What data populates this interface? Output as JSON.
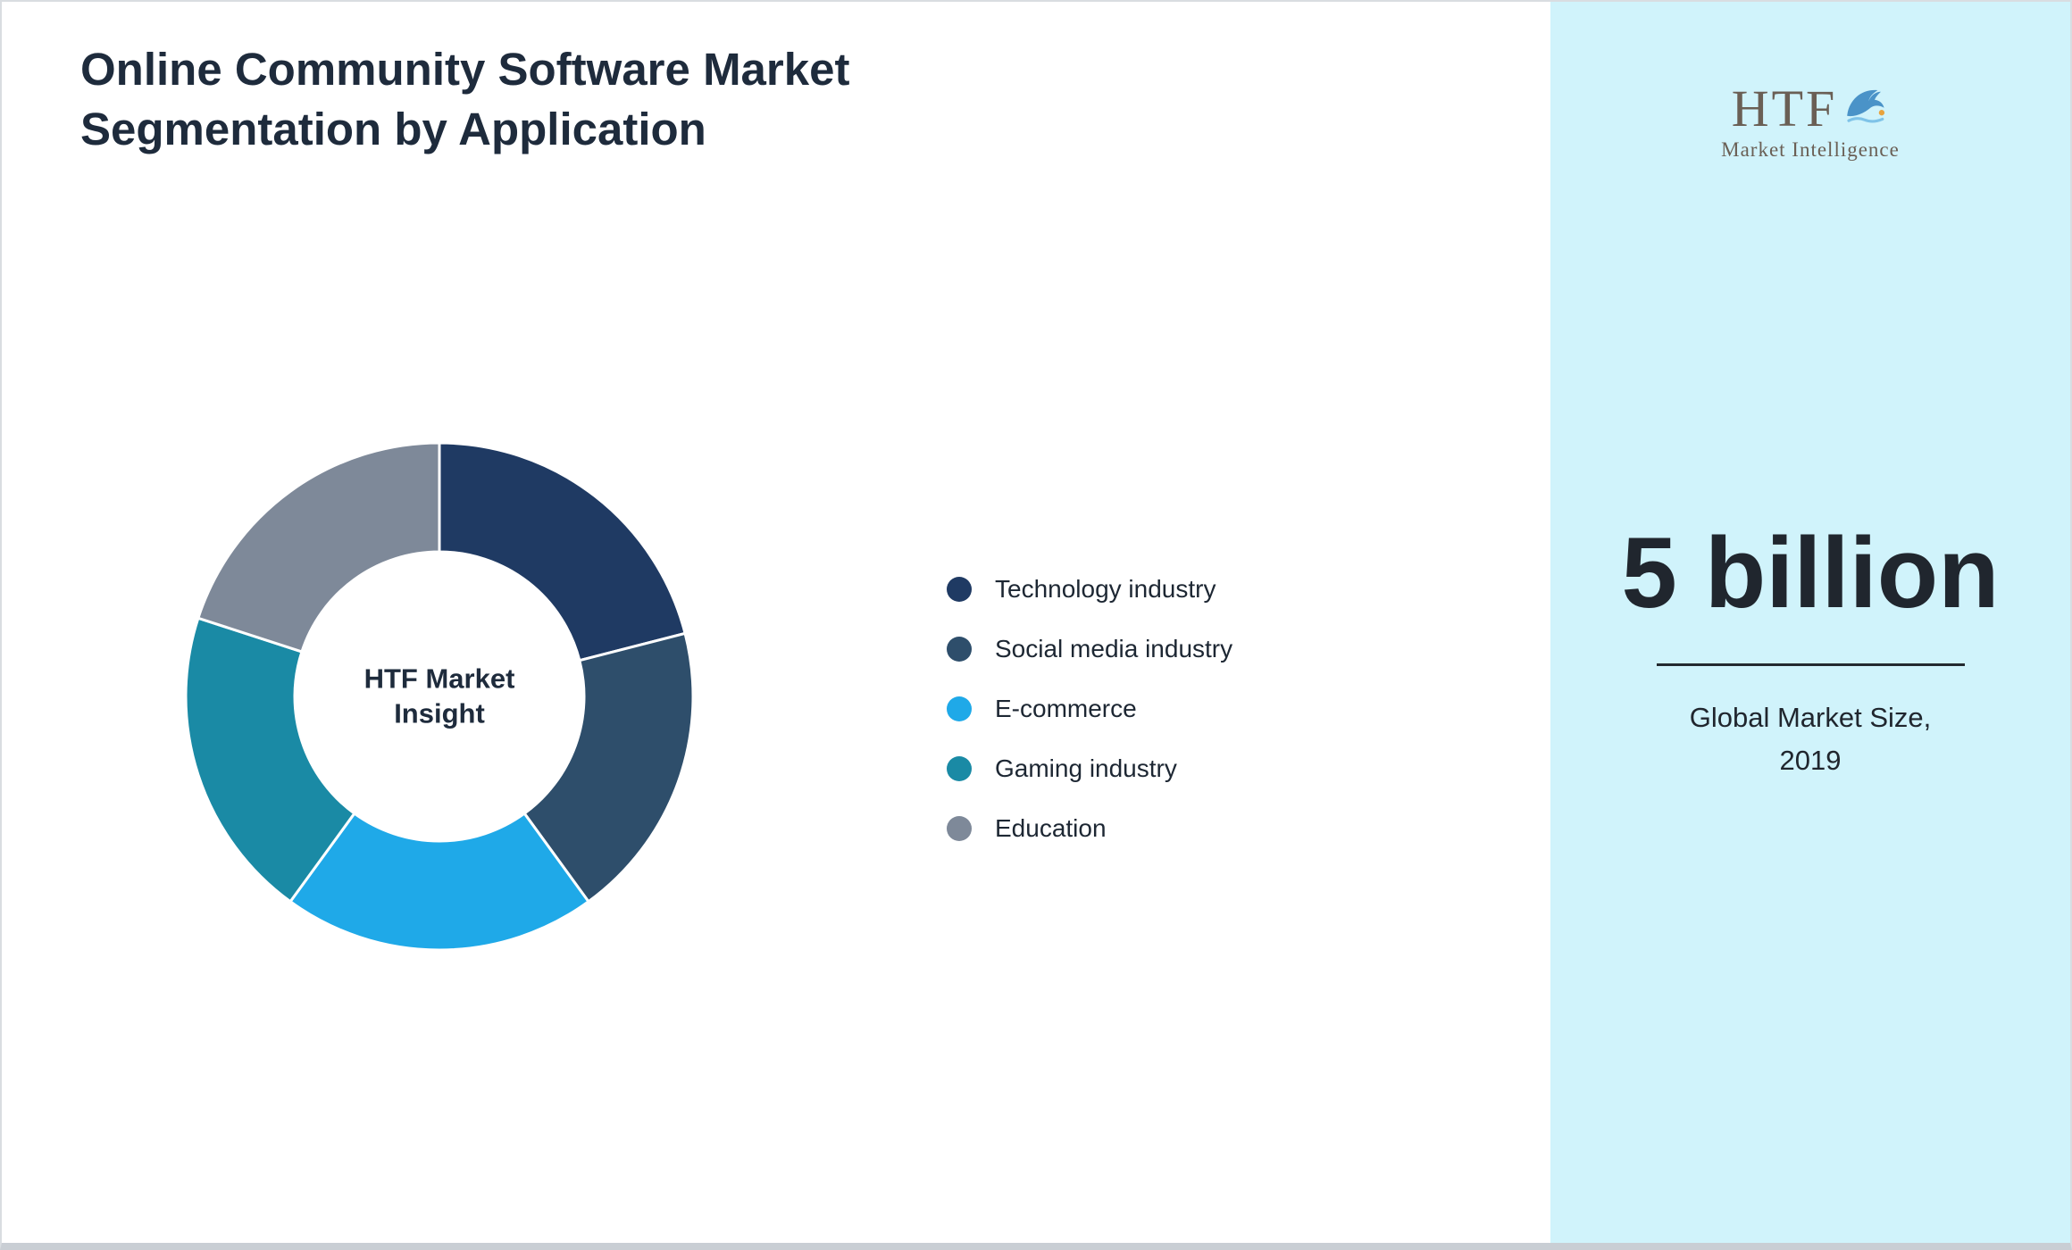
{
  "title": "Online Community Software Market Segmentation by Application",
  "chart_data": {
    "type": "pie",
    "donut": true,
    "title": "Online Community Software Market Segmentation by Application",
    "categories": [
      "Technology industry",
      "Social media industry",
      "E-commerce",
      "Gaming industry",
      "Education"
    ],
    "values": [
      21,
      19,
      20,
      20,
      20
    ],
    "colors": [
      "#1f3a63",
      "#2e4e6b",
      "#1fa9e8",
      "#1a8aa5",
      "#7e8999"
    ],
    "center_label_lines": [
      "HTF Market",
      "Insight"
    ],
    "legend_position": "right",
    "start_angle_deg": 0,
    "unit": "percent"
  },
  "side_panel": {
    "background": "#d0f3fb",
    "logo_text": "HTF",
    "logo_subtext": "Market Intelligence",
    "stat_value": "5 billion",
    "stat_label_lines": [
      "Global Market Size,",
      "2019"
    ]
  }
}
